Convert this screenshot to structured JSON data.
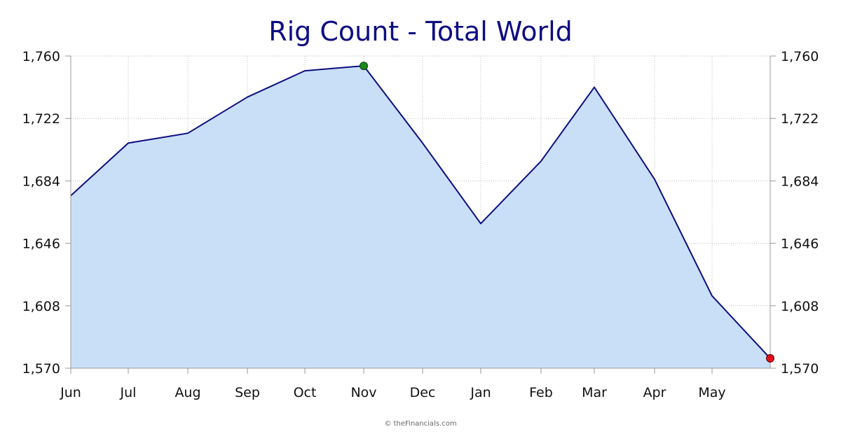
{
  "chart_data": {
    "type": "area",
    "title": "Rig Count - Total World",
    "x": [
      "Jun",
      "Jul",
      "Aug",
      "Sep",
      "Oct",
      "Nov",
      "Dec",
      "Jan",
      "Feb",
      "Mar",
      "Apr",
      "May",
      ""
    ],
    "x_tick_labels": [
      "Jun",
      "Jul",
      "Aug",
      "Sep",
      "Oct",
      "Nov",
      "Dec",
      "Jan",
      "Feb",
      "Mar",
      "Apr",
      "May"
    ],
    "values": [
      1675,
      1707,
      1713,
      1735,
      1751,
      1754,
      1707,
      1658,
      1696,
      1741,
      1685,
      1614,
      1576
    ],
    "y_ticks": [
      1570,
      1608,
      1646,
      1684,
      1722,
      1760
    ],
    "y_tick_labels": [
      "1,760",
      "1,722",
      "1,684",
      "1,646",
      "1,608",
      "1,570"
    ],
    "ylim": [
      1570,
      1760
    ],
    "grid": true,
    "high_marker": {
      "label": "Nov",
      "value": 1754,
      "color": "#1a8a1a"
    },
    "low_marker": {
      "label": "latest",
      "value": 1576,
      "color": "#e0101a"
    },
    "line_color": "#0d0d80",
    "fill_color": "#c9dff7",
    "title_color": "#0d0d80"
  },
  "credit": "© theFinancials.com"
}
